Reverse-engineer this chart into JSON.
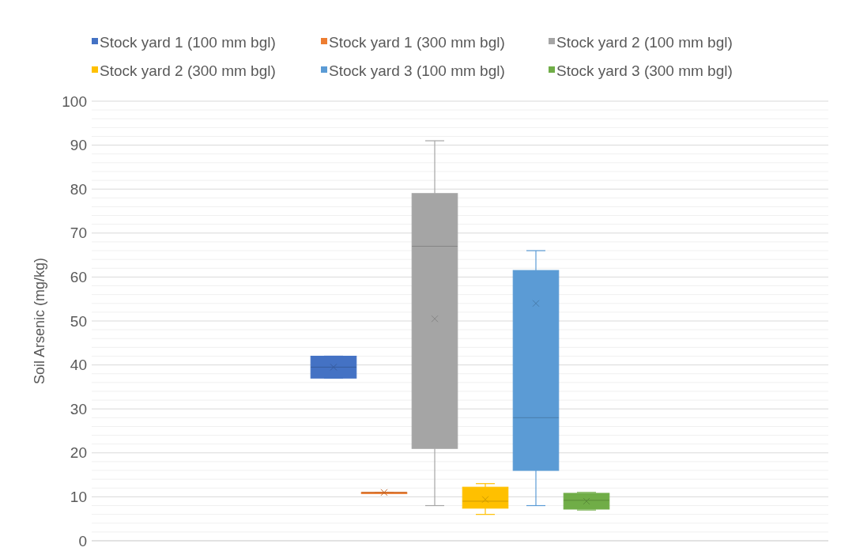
{
  "chart_data": {
    "type": "box",
    "ylabel": "Soil Arsenic (mg/kg)",
    "categories": [
      null
    ],
    "ylim": [
      0,
      100
    ],
    "yticks": [
      0,
      10,
      20,
      30,
      40,
      50,
      60,
      70,
      80,
      90,
      100
    ],
    "grid": true,
    "legend": "top",
    "series": [
      {
        "name": "Stock yard 1 (100 mm bgl)",
        "color": "#4472c4",
        "boxes": [
          {
            "low": 37,
            "q1": 37,
            "median": 39.5,
            "q3": 42,
            "high": 42,
            "mean": 39.5
          }
        ]
      },
      {
        "name": "Stock yard 1 (300 mm bgl)",
        "color": "#ed7d31",
        "boxes": [
          {
            "low": 11,
            "q1": 11,
            "median": 11,
            "q3": 11,
            "high": 11,
            "mean": 11
          }
        ]
      },
      {
        "name": "Stock yard 2 (100 mm bgl)",
        "color": "#a5a5a5",
        "boxes": [
          {
            "low": 8,
            "q1": 21,
            "median": 67,
            "q3": 79,
            "high": 91,
            "mean": 50.5
          }
        ]
      },
      {
        "name": "Stock yard 2 (300 mm bgl)",
        "color": "#ffc000",
        "boxes": [
          {
            "low": 6,
            "q1": 7.4,
            "median": 9,
            "q3": 12.2,
            "high": 13,
            "mean": 9.4
          }
        ]
      },
      {
        "name": "Stock yard 3 (100 mm bgl)",
        "color": "#5b9bd5",
        "boxes": [
          {
            "low": 8,
            "q1": 16,
            "median": 28,
            "q3": 61.5,
            "high": 66,
            "mean": 54
          }
        ]
      },
      {
        "name": "Stock yard 3 (300 mm bgl)",
        "color": "#70ad47",
        "boxes": [
          {
            "low": 7,
            "q1": 7.2,
            "median": 9.2,
            "q3": 10.8,
            "high": 11,
            "mean": 9
          }
        ]
      }
    ]
  }
}
